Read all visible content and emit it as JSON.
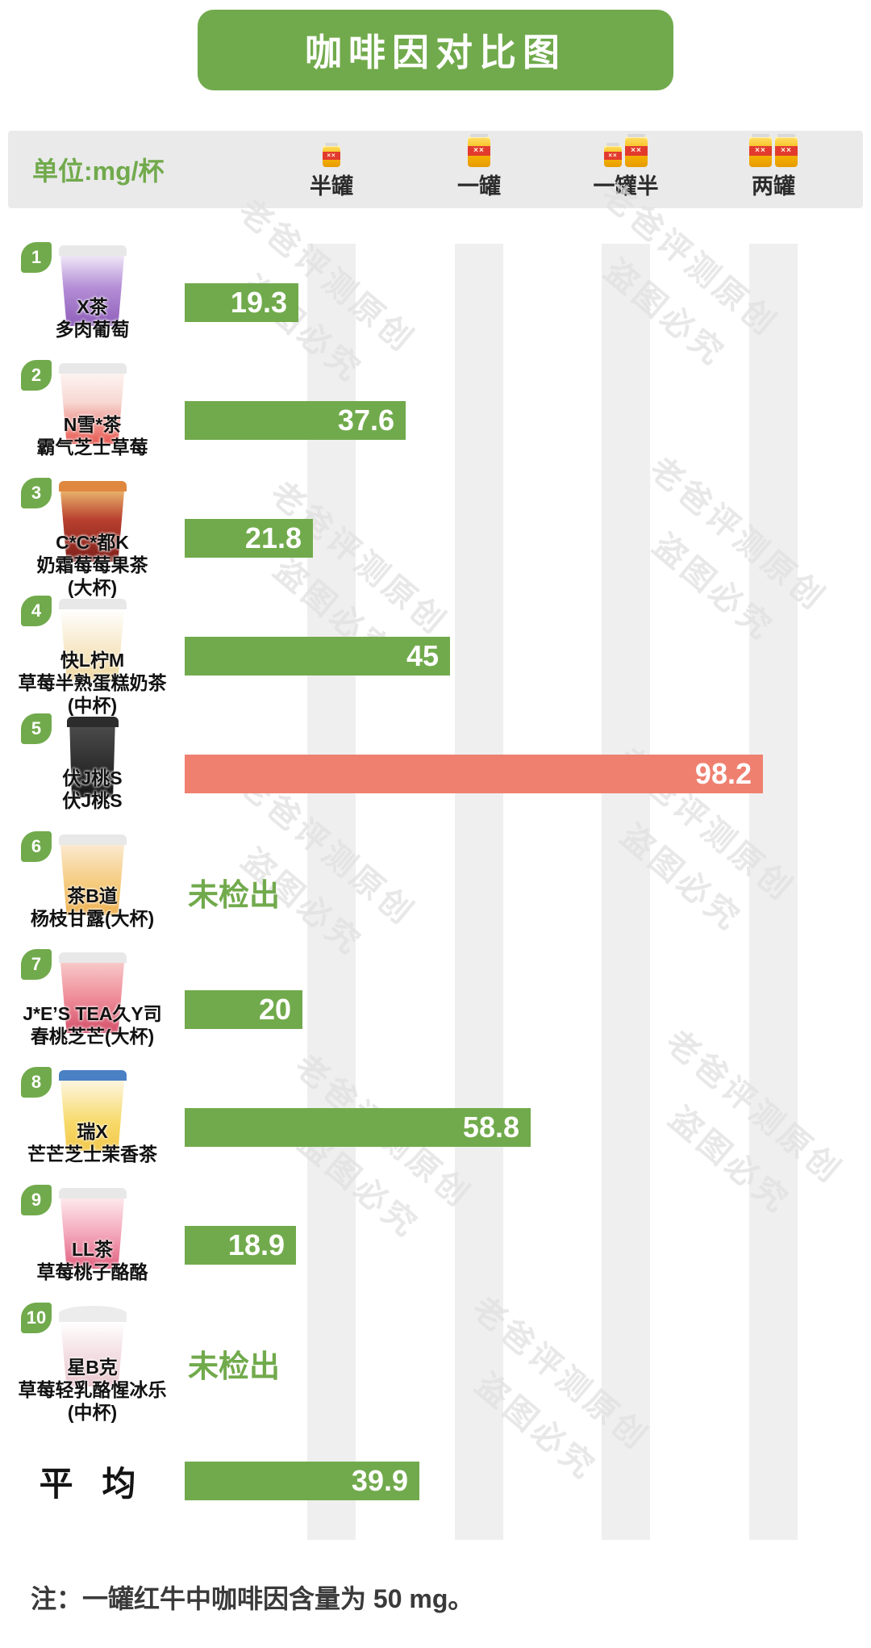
{
  "title": "咖啡因对比图",
  "unit_label": "单位:mg/杯",
  "columns": [
    {
      "label": "半罐",
      "cans": 0.5,
      "mg": 25
    },
    {
      "label": "一罐",
      "cans": 1,
      "mg": 50
    },
    {
      "label": "一罐半",
      "cans": 1.5,
      "mg": 75
    },
    {
      "label": "两罐",
      "cans": 2,
      "mg": 100
    }
  ],
  "labels": {
    "not_detected": "未检出"
  },
  "note": "注：一罐红牛中咖啡因含量为 50 mg。",
  "watermark": {
    "line1": "老爸评测原创",
    "line2": "盗图必究"
  },
  "colors": {
    "green": "#71aa4c",
    "red": "#ef8070",
    "stripe": "#efefef",
    "header_bg": "#eaeaea"
  },
  "chart_data": {
    "type": "bar",
    "orientation": "horizontal",
    "title": "咖啡因对比图",
    "unit": "mg/杯",
    "xlim": [
      0,
      100
    ],
    "x_ticks": [
      {
        "label": "半罐",
        "value": 25
      },
      {
        "label": "一罐",
        "value": 50
      },
      {
        "label": "一罐半",
        "value": 75
      },
      {
        "label": "两罐",
        "value": 100
      }
    ],
    "rows": [
      {
        "rank": 1,
        "name_lines": [
          "X茶",
          "多肉葡萄"
        ],
        "value": 19.3,
        "display": "19.3",
        "bar_color": "green"
      },
      {
        "rank": 2,
        "name_lines": [
          "N雪*茶",
          "霸气芝士草莓"
        ],
        "value": 37.6,
        "display": "37.6",
        "bar_color": "green"
      },
      {
        "rank": 3,
        "name_lines": [
          "C*C*都K",
          "奶霜莓莓果茶",
          "(大杯)"
        ],
        "value": 21.8,
        "display": "21.8",
        "bar_color": "green"
      },
      {
        "rank": 4,
        "name_lines": [
          "快L柠M",
          "草莓半熟蛋糕奶茶",
          "(中杯)"
        ],
        "value": 45,
        "display": "45",
        "bar_color": "green"
      },
      {
        "rank": 5,
        "name_lines": [
          "伏J桃S",
          "伏J桃S"
        ],
        "value": 98.2,
        "display": "98.2",
        "bar_color": "red"
      },
      {
        "rank": 6,
        "name_lines": [
          "茶B道",
          "杨枝甘露(大杯)"
        ],
        "value": null,
        "display": null,
        "not_detected": true
      },
      {
        "rank": 7,
        "name_lines": [
          "J*E’S TEA久Y司",
          "春桃芝芒(大杯)"
        ],
        "value": 20,
        "display": "20",
        "bar_color": "green"
      },
      {
        "rank": 8,
        "name_lines": [
          "瑞X",
          "芒芒芝士茉香茶"
        ],
        "value": 58.8,
        "display": "58.8",
        "bar_color": "green"
      },
      {
        "rank": 9,
        "name_lines": [
          "LL茶",
          "草莓桃子酪酪"
        ],
        "value": 18.9,
        "display": "18.9",
        "bar_color": "green"
      },
      {
        "rank": 10,
        "name_lines": [
          "星B克",
          "草莓轻乳酪惺冰乐",
          "(中杯)"
        ],
        "value": null,
        "display": null,
        "not_detected": true
      }
    ],
    "average": {
      "label": "平 均",
      "value": 39.9,
      "display": "39.9",
      "bar_color": "green"
    }
  }
}
